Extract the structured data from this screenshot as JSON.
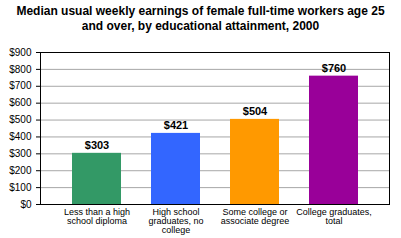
{
  "chart_data": {
    "type": "bar",
    "title": "Median usual weekly earnings of female full-time workers age 25 and over, by educational attainment, 2000",
    "categories": [
      "Less than a high school diploma",
      "High school graduates, no college",
      "Some college or associate degree",
      "College graduates, total"
    ],
    "values": [
      303,
      421,
      504,
      760
    ],
    "value_labels": [
      "$303",
      "$421",
      "$504",
      "$760"
    ],
    "colors": [
      "#339966",
      "#3366ff",
      "#ff9900",
      "#990099"
    ],
    "data_labels": true,
    "grid": true,
    "ylim": [
      0,
      900
    ],
    "yticks": [
      {
        "value": 0,
        "label": "$0"
      },
      {
        "value": 100,
        "label": "$100"
      },
      {
        "value": 200,
        "label": "$200"
      },
      {
        "value": 300,
        "label": "$300"
      },
      {
        "value": 400,
        "label": "$400"
      },
      {
        "value": 500,
        "label": "$500"
      },
      {
        "value": 600,
        "label": "$600"
      },
      {
        "value": 700,
        "label": "$700"
      },
      {
        "value": 800,
        "label": "$800"
      },
      {
        "value": 900,
        "label": "$900"
      }
    ]
  }
}
